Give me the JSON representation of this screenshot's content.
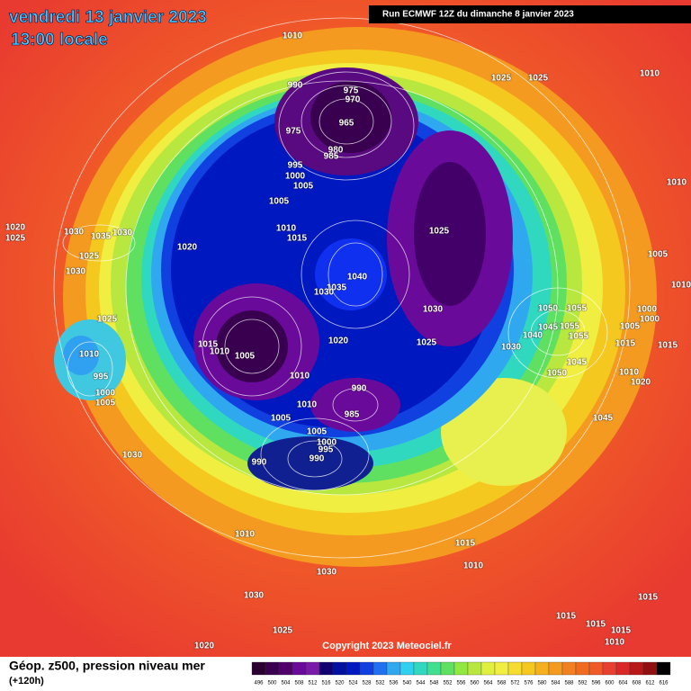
{
  "header": {
    "date": "vendredi 13 janvier 2023",
    "time": "13:00 locale",
    "run": "Run ECMWF 12Z du dimanche 8 janvier 2023"
  },
  "footer": {
    "title": "Géop. z500, pression niveau mer",
    "lead": "(+120h)",
    "copyright": "Copyright 2023 Meteociel.fr"
  },
  "legend": {
    "values": [
      496,
      500,
      504,
      508,
      512,
      516,
      520,
      524,
      528,
      532,
      536,
      540,
      544,
      548,
      552,
      556,
      560,
      564,
      568,
      572,
      576,
      580,
      584,
      588,
      592,
      596,
      600,
      604,
      608,
      612,
      616
    ]
  },
  "isobar_labels": [
    1010,
    990,
    975,
    970,
    965,
    975,
    980,
    985,
    995,
    1000,
    1005,
    1005,
    1010,
    1015,
    1020,
    1025,
    1025,
    1010,
    1010,
    1025,
    1040,
    1035,
    1030,
    1030,
    1025,
    1020,
    1015,
    1010,
    1005,
    1010,
    990,
    985,
    1010,
    1005,
    1005,
    1000,
    995,
    990,
    990,
    1030,
    1010,
    1030,
    1030,
    1025,
    1020,
    1015,
    1010,
    1015,
    1015,
    1015,
    1010,
    1015,
    1020,
    1025,
    1030,
    1035,
    1030,
    1025,
    1030,
    1025,
    1010,
    995,
    1000,
    1005,
    1050,
    1055,
    1045,
    1055,
    1040,
    1055,
    1030,
    1050,
    1045,
    1045,
    1005,
    1000,
    1000,
    1005,
    1015,
    1015,
    1010,
    1020,
    1010
  ]
}
